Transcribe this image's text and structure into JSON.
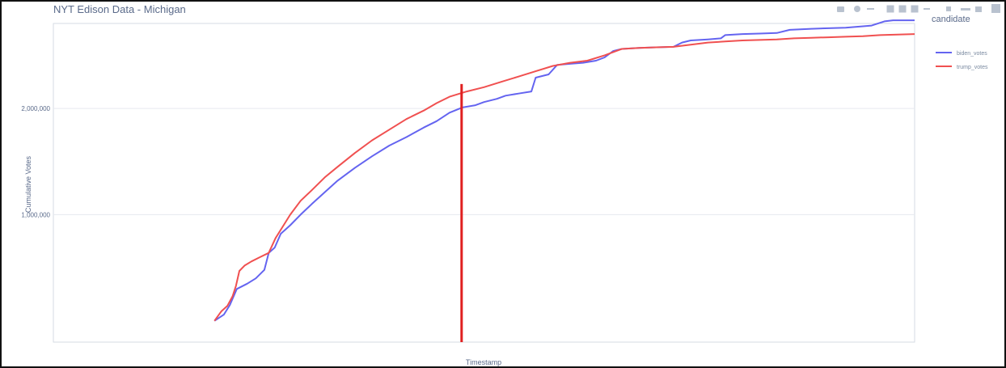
{
  "chart_data": {
    "type": "line",
    "title": "NYT Edison Data - Michigan",
    "xlabel": "Timestamp",
    "ylabel": "Cumulative Votes",
    "y_ticks": [
      {
        "value": 1000000,
        "label": "1,000,000"
      },
      {
        "value": 2000000,
        "label": "2,000,000"
      }
    ],
    "ylim": [
      -200000,
      2800000
    ],
    "xlim": [
      0,
      100
    ],
    "grid": true,
    "legend": {
      "title": "candidate",
      "placement": "top-right"
    },
    "series": [
      {
        "name": "biden_votes",
        "color": "#6464f0",
        "points": [
          [
            18.7,
            0
          ],
          [
            19.8,
            60000
          ],
          [
            20.5,
            150000
          ],
          [
            21.3,
            300000
          ],
          [
            22.5,
            350000
          ],
          [
            23.5,
            400000
          ],
          [
            24.5,
            480000
          ],
          [
            25.0,
            640000
          ],
          [
            25.7,
            690000
          ],
          [
            26.4,
            820000
          ],
          [
            27.5,
            900000
          ],
          [
            28.7,
            1000000
          ],
          [
            30.0,
            1100000
          ],
          [
            31.5,
            1210000
          ],
          [
            33.0,
            1320000
          ],
          [
            35.0,
            1440000
          ],
          [
            37.0,
            1550000
          ],
          [
            39.0,
            1650000
          ],
          [
            41.0,
            1730000
          ],
          [
            43.0,
            1820000
          ],
          [
            44.5,
            1880000
          ],
          [
            46.0,
            1960000
          ],
          [
            47.5,
            2010000
          ],
          [
            49.0,
            2030000
          ],
          [
            50.0,
            2060000
          ],
          [
            51.5,
            2090000
          ],
          [
            52.5,
            2120000
          ],
          [
            54.0,
            2140000
          ],
          [
            55.5,
            2160000
          ],
          [
            56.0,
            2290000
          ],
          [
            57.5,
            2320000
          ],
          [
            58.5,
            2410000
          ],
          [
            60.0,
            2420000
          ],
          [
            61.5,
            2430000
          ],
          [
            63.0,
            2450000
          ],
          [
            64.0,
            2480000
          ],
          [
            65.0,
            2540000
          ],
          [
            66.0,
            2560000
          ],
          [
            68.0,
            2570000
          ],
          [
            70.0,
            2575000
          ],
          [
            72.0,
            2580000
          ],
          [
            73.0,
            2620000
          ],
          [
            74.0,
            2640000
          ],
          [
            76.0,
            2650000
          ],
          [
            77.5,
            2660000
          ],
          [
            78.0,
            2690000
          ],
          [
            80.0,
            2700000
          ],
          [
            82.0,
            2705000
          ],
          [
            84.0,
            2710000
          ],
          [
            85.5,
            2740000
          ],
          [
            88.0,
            2750000
          ],
          [
            90.0,
            2755000
          ],
          [
            92.0,
            2760000
          ],
          [
            95.0,
            2780000
          ],
          [
            96.5,
            2820000
          ],
          [
            97.5,
            2830000
          ],
          [
            100.0,
            2830000
          ]
        ]
      },
      {
        "name": "trump_votes",
        "color": "#f05050",
        "points": [
          [
            18.7,
            0
          ],
          [
            19.5,
            90000
          ],
          [
            20.2,
            140000
          ],
          [
            20.8,
            230000
          ],
          [
            21.2,
            330000
          ],
          [
            21.6,
            470000
          ],
          [
            22.2,
            520000
          ],
          [
            23.0,
            560000
          ],
          [
            24.0,
            600000
          ],
          [
            25.0,
            640000
          ],
          [
            25.8,
            780000
          ],
          [
            26.5,
            870000
          ],
          [
            27.5,
            1000000
          ],
          [
            28.7,
            1130000
          ],
          [
            30.0,
            1230000
          ],
          [
            31.5,
            1350000
          ],
          [
            33.0,
            1450000
          ],
          [
            35.0,
            1580000
          ],
          [
            37.0,
            1700000
          ],
          [
            39.0,
            1800000
          ],
          [
            41.0,
            1900000
          ],
          [
            43.0,
            1980000
          ],
          [
            44.5,
            2050000
          ],
          [
            46.0,
            2110000
          ],
          [
            48.0,
            2160000
          ],
          [
            50.0,
            2200000
          ],
          [
            52.0,
            2250000
          ],
          [
            54.0,
            2300000
          ],
          [
            56.0,
            2350000
          ],
          [
            58.0,
            2400000
          ],
          [
            60.0,
            2430000
          ],
          [
            62.0,
            2450000
          ],
          [
            64.0,
            2500000
          ],
          [
            66.0,
            2560000
          ],
          [
            68.0,
            2570000
          ],
          [
            70.0,
            2575000
          ],
          [
            72.0,
            2580000
          ],
          [
            74.0,
            2600000
          ],
          [
            76.0,
            2620000
          ],
          [
            78.0,
            2630000
          ],
          [
            80.0,
            2640000
          ],
          [
            82.0,
            2645000
          ],
          [
            84.0,
            2650000
          ],
          [
            86.0,
            2660000
          ],
          [
            88.0,
            2665000
          ],
          [
            90.0,
            2670000
          ],
          [
            92.0,
            2675000
          ],
          [
            94.0,
            2680000
          ],
          [
            96.0,
            2690000
          ],
          [
            98.0,
            2695000
          ],
          [
            100.0,
            2700000
          ]
        ]
      }
    ],
    "annotation": {
      "type": "vertical_line",
      "color": "#e02020",
      "x": 47.4,
      "y_top": 2230000,
      "y_bottom": -200000
    }
  }
}
